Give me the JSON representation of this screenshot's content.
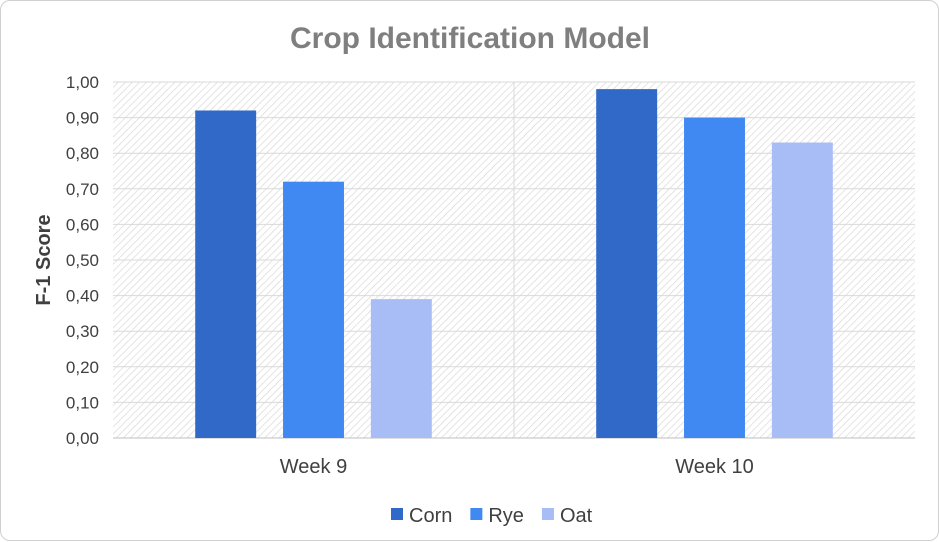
{
  "chart_data": {
    "type": "bar",
    "title": "Crop Identification Model",
    "xlabel": "",
    "ylabel": "F-1 Score",
    "categories": [
      "Week 9",
      "Week 10"
    ],
    "series": [
      {
        "name": "Corn",
        "values": [
          0.92,
          0.98
        ],
        "color": "#3169c9"
      },
      {
        "name": "Rye",
        "values": [
          0.72,
          0.9
        ],
        "color": "#4189f2"
      },
      {
        "name": "Oat",
        "values": [
          0.39,
          0.83
        ],
        "color": "#a8bcf5"
      }
    ],
    "ylim": [
      0,
      1
    ],
    "yticks": [
      "0,00",
      "0,10",
      "0,20",
      "0,30",
      "0,40",
      "0,50",
      "0,60",
      "0,70",
      "0,80",
      "0,90",
      "1,00"
    ],
    "grid": true,
    "legend_position": "bottom"
  }
}
